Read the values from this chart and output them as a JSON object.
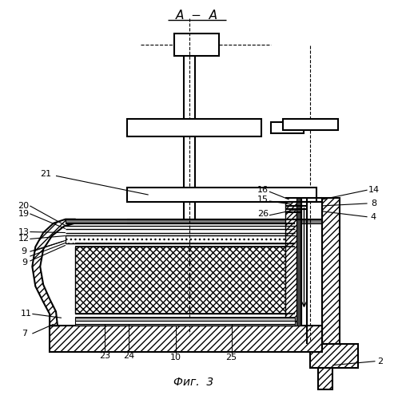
{
  "bg_color": "#ffffff",
  "title": "A − A",
  "caption": "Фиг.  3"
}
